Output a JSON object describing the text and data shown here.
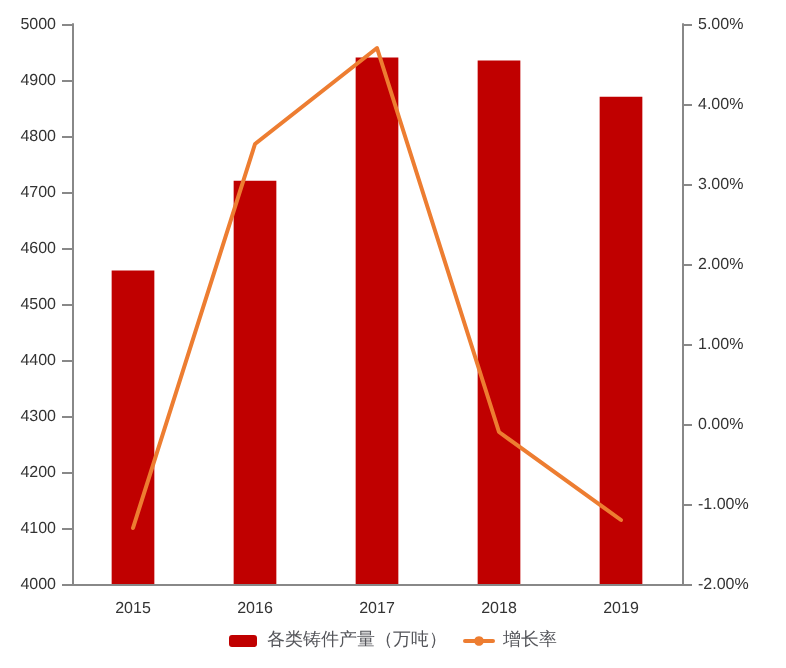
{
  "chart_data": {
    "type": "bar",
    "categories": [
      "2015",
      "2016",
      "2017",
      "2018",
      "2019"
    ],
    "series": [
      {
        "name": "各类铸件产量（万吨）",
        "color": "#c00000",
        "values": [
          4560,
          4720,
          4940,
          4935,
          4870
        ]
      },
      {
        "name": "增长率",
        "type": "line",
        "axis": "y2",
        "color": "#ed7d31",
        "values": [
          -1.3,
          3.5,
          4.7,
          -0.1,
          -1.2
        ]
      }
    ],
    "ylim": [
      4000,
      5000
    ],
    "yticks": [
      4000,
      4100,
      4200,
      4300,
      4400,
      4500,
      4600,
      4700,
      4800,
      4900,
      5000
    ],
    "y2lim": [
      -2,
      5
    ],
    "y2ticks": [
      {
        "value": -2,
        "label": "-2.00%"
      },
      {
        "value": -1,
        "label": "-1.00%"
      },
      {
        "value": 0,
        "label": "0.00%"
      },
      {
        "value": 1,
        "label": "1.00%"
      },
      {
        "value": 2,
        "label": "2.00%"
      },
      {
        "value": 3,
        "label": "3.00%"
      },
      {
        "value": 4,
        "label": "4.00%"
      },
      {
        "value": 5,
        "label": "5.00%"
      }
    ],
    "grid": false,
    "legend": "bottom",
    "marker": "none",
    "line_style": "solid"
  }
}
